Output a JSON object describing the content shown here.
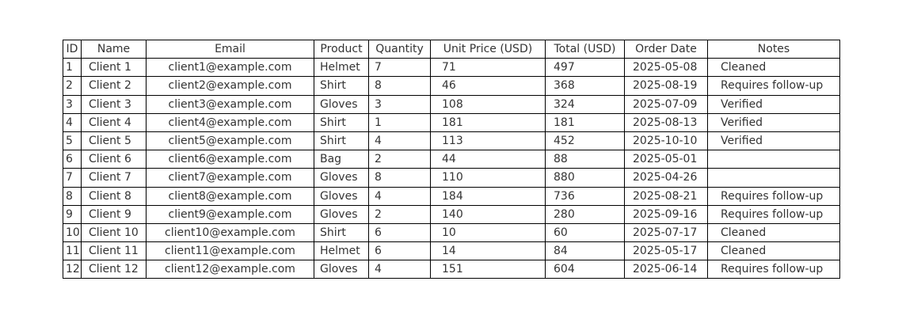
{
  "chart_data": {
    "type": "table",
    "columns": [
      "ID",
      "Name",
      "Email",
      "Product",
      "Quantity",
      "Unit Price (USD)",
      "Total (USD)",
      "Order Date",
      "Notes"
    ],
    "rows": [
      [
        "1",
        "Client 1",
        "client1@example.com",
        "Helmet",
        "7",
        "71",
        "497",
        "2025-05-08",
        "Cleaned"
      ],
      [
        "2",
        "Client 2",
        "client2@example.com",
        "Shirt",
        "8",
        "46",
        "368",
        "2025-08-19",
        "Requires follow-up"
      ],
      [
        "3",
        "Client 3",
        "client3@example.com",
        "Gloves",
        "3",
        "108",
        "324",
        "2025-07-09",
        "Verified"
      ],
      [
        "4",
        "Client 4",
        "client4@example.com",
        "Shirt",
        "1",
        "181",
        "181",
        "2025-08-13",
        "Verified"
      ],
      [
        "5",
        "Client 5",
        "client5@example.com",
        "Shirt",
        "4",
        "113",
        "452",
        "2025-10-10",
        "Verified"
      ],
      [
        "6",
        "Client 6",
        "client6@example.com",
        "Bag",
        "2",
        "44",
        "88",
        "2025-05-01",
        ""
      ],
      [
        "7",
        "Client 7",
        "client7@example.com",
        "Gloves",
        "8",
        "110",
        "880",
        "2025-04-26",
        ""
      ],
      [
        "8",
        "Client 8",
        "client8@example.com",
        "Gloves",
        "4",
        "184",
        "736",
        "2025-08-21",
        "Requires follow-up"
      ],
      [
        "9",
        "Client 9",
        "client9@example.com",
        "Gloves",
        "2",
        "140",
        "280",
        "2025-09-16",
        "Requires follow-up"
      ],
      [
        "10",
        "Client 10",
        "client10@example.com",
        "Shirt",
        "6",
        "10",
        "60",
        "2025-07-17",
        "Cleaned"
      ],
      [
        "11",
        "Client 11",
        "client11@example.com",
        "Helmet",
        "6",
        "14",
        "84",
        "2025-05-17",
        "Cleaned"
      ],
      [
        "12",
        "Client 12",
        "client12@example.com",
        "Gloves",
        "4",
        "151",
        "604",
        "2025-06-14",
        "Requires follow-up"
      ]
    ]
  }
}
